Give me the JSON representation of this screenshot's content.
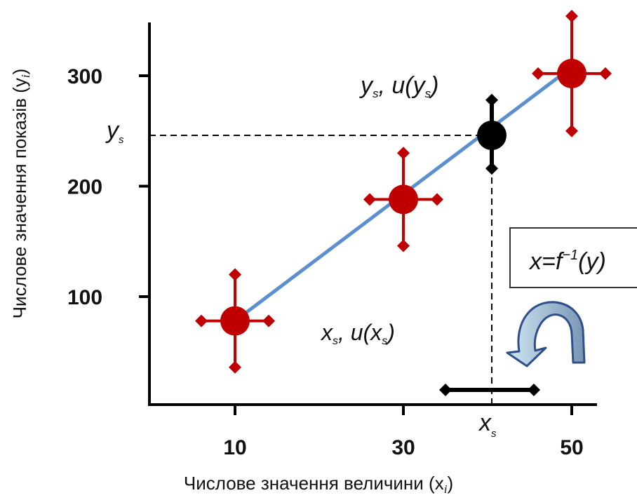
{
  "chart_data": {
    "type": "scatter",
    "title": "",
    "xlabel": "Числове значення величини",
    "xlabel_var": "(x",
    "xlabel_sub": "i",
    "xlabel_close": ")",
    "ylabel": "Числове значення показів",
    "ylabel_var": "(y",
    "ylabel_sub": "i",
    "ylabel_close": ")",
    "x_ticks": [
      10,
      30,
      50
    ],
    "y_ticks": [
      100,
      200,
      300
    ],
    "xlim": [
      0,
      55
    ],
    "ylim": [
      10,
      355
    ],
    "calibration_points": [
      {
        "x": 10,
        "y": 78,
        "x_unc": 4,
        "y_unc": 42
      },
      {
        "x": 30,
        "y": 188,
        "x_unc": 4,
        "y_unc": 42
      },
      {
        "x": 50,
        "y": 302,
        "x_unc": 4,
        "y_unc": 52
      }
    ],
    "fit_line": {
      "x": [
        10,
        49
      ],
      "y": [
        78,
        302
      ]
    },
    "sample_point": {
      "x": 40.5,
      "y": 246,
      "y_unc_up": 32,
      "y_unc_down": 30,
      "x_unc_low": 5.5,
      "x_unc_high": 5
    },
    "sample_y_label": "y",
    "sample_y_label_sub": "s",
    "sample_x_label": "x",
    "sample_x_label_sub": "s",
    "ann_ys_uys": {
      "a": "y",
      "a_sub": "s",
      "mid": ", u(",
      "b": "y",
      "b_sub": "s",
      "close": ")"
    },
    "ann_xs_uxs": {
      "a": "x",
      "a_sub": "s",
      "mid": ", u(",
      "b": "x",
      "b_sub": "s",
      "close": ")"
    },
    "formula": {
      "lhs": "x=f",
      "sup": "−1",
      "rhs": "(y)"
    },
    "colors": {
      "calibration_marker": "#c00000",
      "sample_marker": "#000000",
      "fit_line": "#5b8fd0",
      "arrow_fill_light": "#cfe6f2",
      "arrow_fill_dark": "#7a95b5",
      "arrow_stroke": "#2f4f8a"
    },
    "grid": false,
    "legend": "none"
  }
}
